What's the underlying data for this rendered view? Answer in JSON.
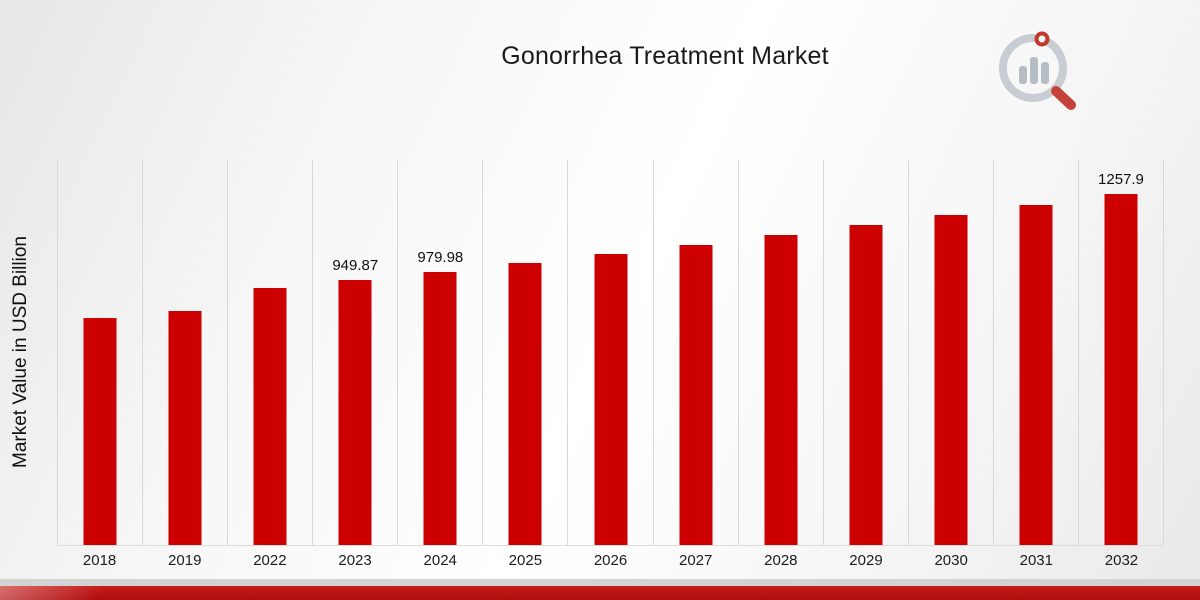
{
  "page": {
    "title": "Gonorrhea Treatment Market"
  },
  "colors": {
    "bar": "#cc0001",
    "footer_red": "#b81113",
    "footer_gray": "#d3d3d3",
    "gridline": "#d8d8d8"
  },
  "logo": {
    "name": "magnifier-bar-chart-logo"
  },
  "chart_data": {
    "type": "bar",
    "title": "Gonorrhea Treatment Market",
    "xlabel": "",
    "ylabel": "Market Value in USD Billion",
    "categories": [
      "2018",
      "2019",
      "2022",
      "2023",
      "2024",
      "2025",
      "2026",
      "2027",
      "2028",
      "2029",
      "2030",
      "2031",
      "2032"
    ],
    "values": [
      812.5,
      838.2,
      920.7,
      949.87,
      979.98,
      1011.0,
      1043.1,
      1076.1,
      1110.2,
      1145.4,
      1181.7,
      1219.1,
      1257.9
    ],
    "data_labels": [
      "",
      "",
      "",
      "949.87",
      "979.98",
      "",
      "",
      "",
      "",
      "",
      "",
      "",
      "1257.9"
    ],
    "bar_color": "#cc0001",
    "ylim": [
      0,
      1380
    ],
    "grid": "vertical",
    "legend_position": "none"
  }
}
